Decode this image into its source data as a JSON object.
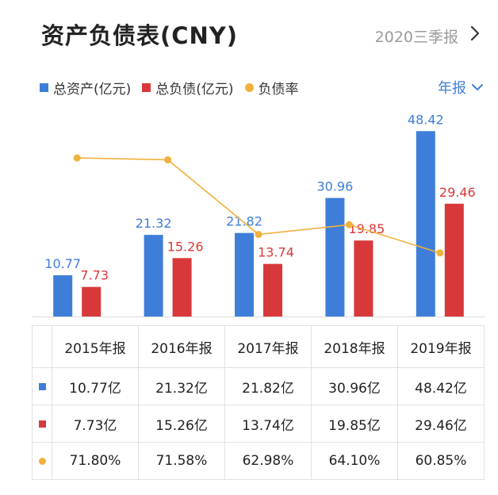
{
  "header": {
    "title": "资产负债表(CNY)",
    "period": "2020三季报"
  },
  "legend": {
    "assets_label": "总资产(亿元)",
    "liabilities_label": "总负债(亿元)",
    "ratio_label": "负债率"
  },
  "report_select": {
    "label": "年报"
  },
  "colors": {
    "assets": "#3f7ed8",
    "liabilities": "#d9383a",
    "ratio": "#f0b13c"
  },
  "chart_data": {
    "type": "bar",
    "categories": [
      "2015年报",
      "2016年报",
      "2017年报",
      "2018年报",
      "2019年报"
    ],
    "series": [
      {
        "name": "总资产(亿元)",
        "type": "bar",
        "values": [
          10.77,
          21.32,
          21.82,
          30.96,
          48.42
        ],
        "labels": [
          "10.77",
          "21.32",
          "21.82",
          "30.96",
          "48.42"
        ]
      },
      {
        "name": "总负债(亿元)",
        "type": "bar",
        "values": [
          7.73,
          15.26,
          13.74,
          19.85,
          29.46
        ],
        "labels": [
          "7.73",
          "15.26",
          "13.74",
          "19.85",
          "29.46"
        ]
      },
      {
        "name": "负债率",
        "type": "line",
        "values": [
          71.8,
          71.58,
          62.98,
          64.1,
          60.85
        ]
      }
    ],
    "ylim_bars": [
      0,
      52
    ],
    "ylim_ratio": [
      58,
      74
    ]
  },
  "table": {
    "headers": [
      "2015年报",
      "2016年报",
      "2017年报",
      "2018年报",
      "2019年报"
    ],
    "rows": [
      {
        "marker": "assets",
        "cells": [
          "10.77亿",
          "21.32亿",
          "21.82亿",
          "30.96亿",
          "48.42亿"
        ]
      },
      {
        "marker": "liabilities",
        "cells": [
          "7.73亿",
          "15.26亿",
          "13.74亿",
          "19.85亿",
          "29.46亿"
        ]
      },
      {
        "marker": "ratio",
        "cells": [
          "71.80%",
          "71.58%",
          "62.98%",
          "64.10%",
          "60.85%"
        ]
      }
    ]
  }
}
